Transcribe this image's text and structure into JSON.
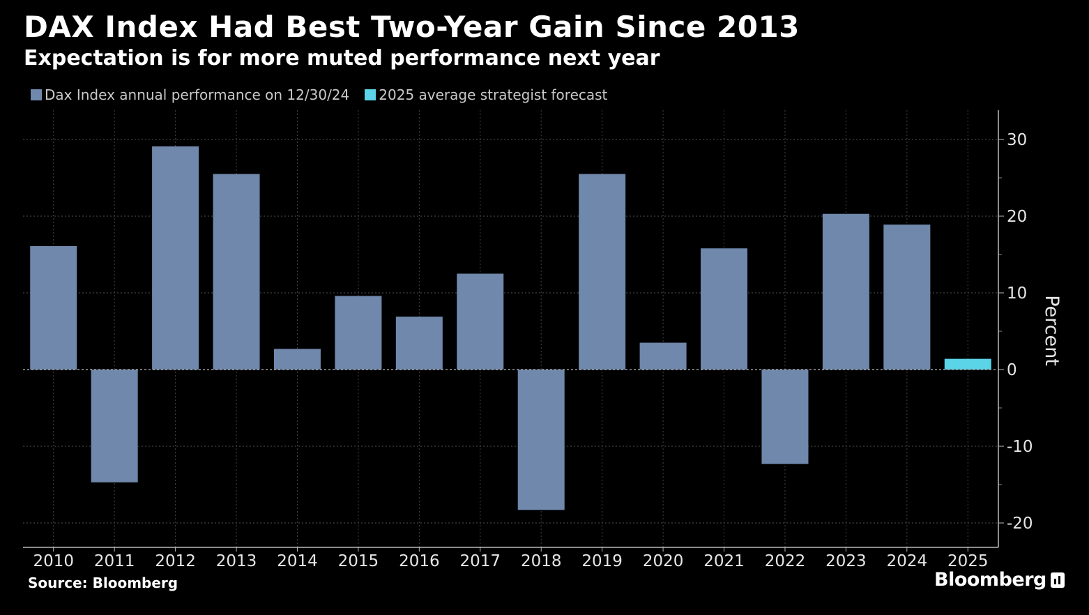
{
  "header": {
    "title": "DAX Index Had Best Two-Year Gain Since 2013",
    "subtitle": "Expectation is for more muted performance next year"
  },
  "legend": [
    {
      "label": "Dax Index annual performance on 12/30/24",
      "color": "#6f88ab"
    },
    {
      "label": "2025 average strategist forecast",
      "color": "#5ad4e6"
    }
  ],
  "footer": {
    "source": "Source: Bloomberg",
    "brand": "Bloomberg"
  },
  "chart_data": {
    "type": "bar",
    "categories": [
      "2010",
      "2011",
      "2012",
      "2013",
      "2014",
      "2015",
      "2016",
      "2017",
      "2018",
      "2019",
      "2020",
      "2021",
      "2022",
      "2023",
      "2024",
      "2025"
    ],
    "series": [
      {
        "name": "Dax Index annual performance on 12/30/24",
        "color": "#6f88ab",
        "values": [
          16.1,
          -14.7,
          29.1,
          25.5,
          2.7,
          9.6,
          6.9,
          12.5,
          -18.3,
          25.5,
          3.5,
          15.8,
          -12.3,
          20.3,
          18.9,
          null
        ]
      },
      {
        "name": "2025 average strategist forecast",
        "color": "#5ad4e6",
        "values": [
          null,
          null,
          null,
          null,
          null,
          null,
          null,
          null,
          null,
          null,
          null,
          null,
          null,
          null,
          null,
          1.4
        ]
      }
    ],
    "ylabel": "Percent",
    "ylim": [
      -23,
      34
    ],
    "yticks": [
      -20,
      -10,
      0,
      10,
      20,
      30
    ],
    "ytick_labels": [
      "-20",
      "-10",
      "0",
      "10",
      "20",
      "30"
    ],
    "y_axis_position": "right",
    "grid": true
  }
}
